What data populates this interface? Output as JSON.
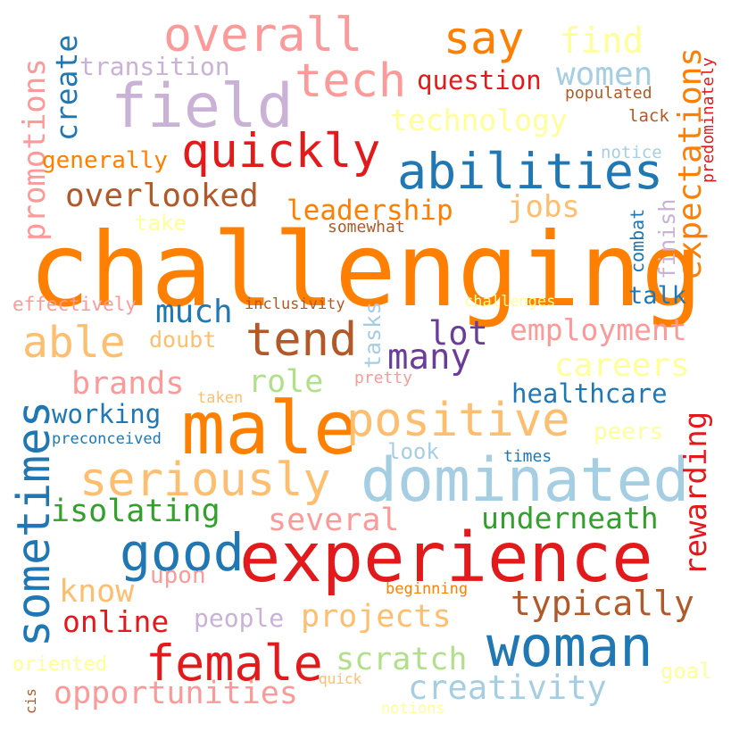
{
  "title": "Word cloud",
  "palette": {
    "orange": "#ff7f00",
    "light_orange": "#fdbf6f",
    "red": "#e31a1c",
    "pink": "#fb9a99",
    "blue": "#1f78b4",
    "light_blue": "#a6cee3",
    "green": "#33a02c",
    "light_green": "#b2df8a",
    "purple": "#6a3d9a",
    "lavender": "#cab2d6",
    "brown": "#b15928",
    "yellow": "#ffff99"
  },
  "words": [
    {
      "text": "challenging",
      "color": "orange"
    },
    {
      "text": "experience",
      "color": "red"
    },
    {
      "text": "male",
      "color": "orange"
    },
    {
      "text": "dominated",
      "color": "light_blue"
    },
    {
      "text": "woman",
      "color": "blue"
    },
    {
      "text": "female",
      "color": "red"
    },
    {
      "text": "field",
      "color": "lavender"
    },
    {
      "text": "abilities",
      "color": "blue"
    },
    {
      "text": "quickly",
      "color": "red"
    },
    {
      "text": "tech",
      "color": "pink"
    },
    {
      "text": "overall",
      "color": "pink"
    },
    {
      "text": "sometimes",
      "color": "blue"
    },
    {
      "text": "positive",
      "color": "light_orange"
    },
    {
      "text": "seriously",
      "color": "light_orange"
    },
    {
      "text": "tend",
      "color": "brown"
    },
    {
      "text": "good",
      "color": "blue"
    },
    {
      "text": "able",
      "color": "light_orange"
    },
    {
      "text": "say",
      "color": "orange"
    },
    {
      "text": "expectations",
      "color": "orange"
    },
    {
      "text": "overlooked",
      "color": "brown"
    },
    {
      "text": "technology",
      "color": "yellow"
    },
    {
      "text": "women",
      "color": "light_blue"
    },
    {
      "text": "find",
      "color": "yellow"
    },
    {
      "text": "promotions",
      "color": "pink"
    },
    {
      "text": "rewarding",
      "color": "red"
    },
    {
      "text": "typically",
      "color": "brown"
    },
    {
      "text": "projects",
      "color": "light_orange"
    },
    {
      "text": "much",
      "color": "blue"
    },
    {
      "text": "many",
      "color": "purple"
    },
    {
      "text": "lot",
      "color": "purple"
    },
    {
      "text": "creativity",
      "color": "light_blue"
    },
    {
      "text": "opportunities",
      "color": "pink"
    },
    {
      "text": "careers",
      "color": "yellow"
    },
    {
      "text": "employment",
      "color": "pink"
    },
    {
      "text": "leadership",
      "color": "orange"
    },
    {
      "text": "jobs",
      "color": "light_orange"
    },
    {
      "text": "create",
      "color": "blue"
    },
    {
      "text": "several",
      "color": "pink"
    },
    {
      "text": "underneath",
      "color": "green"
    },
    {
      "text": "isolating",
      "color": "green"
    },
    {
      "text": "scratch",
      "color": "light_green"
    },
    {
      "text": "online",
      "color": "red"
    },
    {
      "text": "know",
      "color": "light_orange"
    },
    {
      "text": "brands",
      "color": "pink"
    },
    {
      "text": "role",
      "color": "light_green"
    },
    {
      "text": "working",
      "color": "blue"
    },
    {
      "text": "healthcare",
      "color": "blue"
    },
    {
      "text": "question",
      "color": "red"
    },
    {
      "text": "transition",
      "color": "lavender"
    },
    {
      "text": "generally",
      "color": "orange"
    },
    {
      "text": "talk",
      "color": "blue"
    },
    {
      "text": "finish",
      "color": "lavender"
    },
    {
      "text": "people",
      "color": "lavender"
    },
    {
      "text": "doubt",
      "color": "light_orange"
    },
    {
      "text": "upon",
      "color": "pink"
    },
    {
      "text": "tasks",
      "color": "light_blue"
    },
    {
      "text": "peers",
      "color": "yellow"
    },
    {
      "text": "look",
      "color": "light_blue"
    },
    {
      "text": "effectively",
      "color": "pink"
    },
    {
      "text": "take",
      "color": "yellow"
    },
    {
      "text": "combat",
      "color": "blue"
    },
    {
      "text": "oriented",
      "color": "yellow"
    },
    {
      "text": "goal",
      "color": "yellow"
    },
    {
      "text": "populated",
      "color": "brown"
    },
    {
      "text": "lack",
      "color": "brown"
    },
    {
      "text": "notice",
      "color": "light_blue"
    },
    {
      "text": "predominately",
      "color": "red"
    },
    {
      "text": "somewhat",
      "color": "brown"
    },
    {
      "text": "inclusivity",
      "color": "brown"
    },
    {
      "text": "challenges",
      "color": "yellow"
    },
    {
      "text": "preconceived",
      "color": "blue"
    },
    {
      "text": "taken",
      "color": "light_orange"
    },
    {
      "text": "pretty",
      "color": "pink"
    },
    {
      "text": "times",
      "color": "blue"
    },
    {
      "text": "beginning",
      "color": "orange"
    },
    {
      "text": "quick",
      "color": "light_orange"
    },
    {
      "text": "notions",
      "color": "yellow"
    },
    {
      "text": "cis",
      "color": "brown"
    }
  ]
}
